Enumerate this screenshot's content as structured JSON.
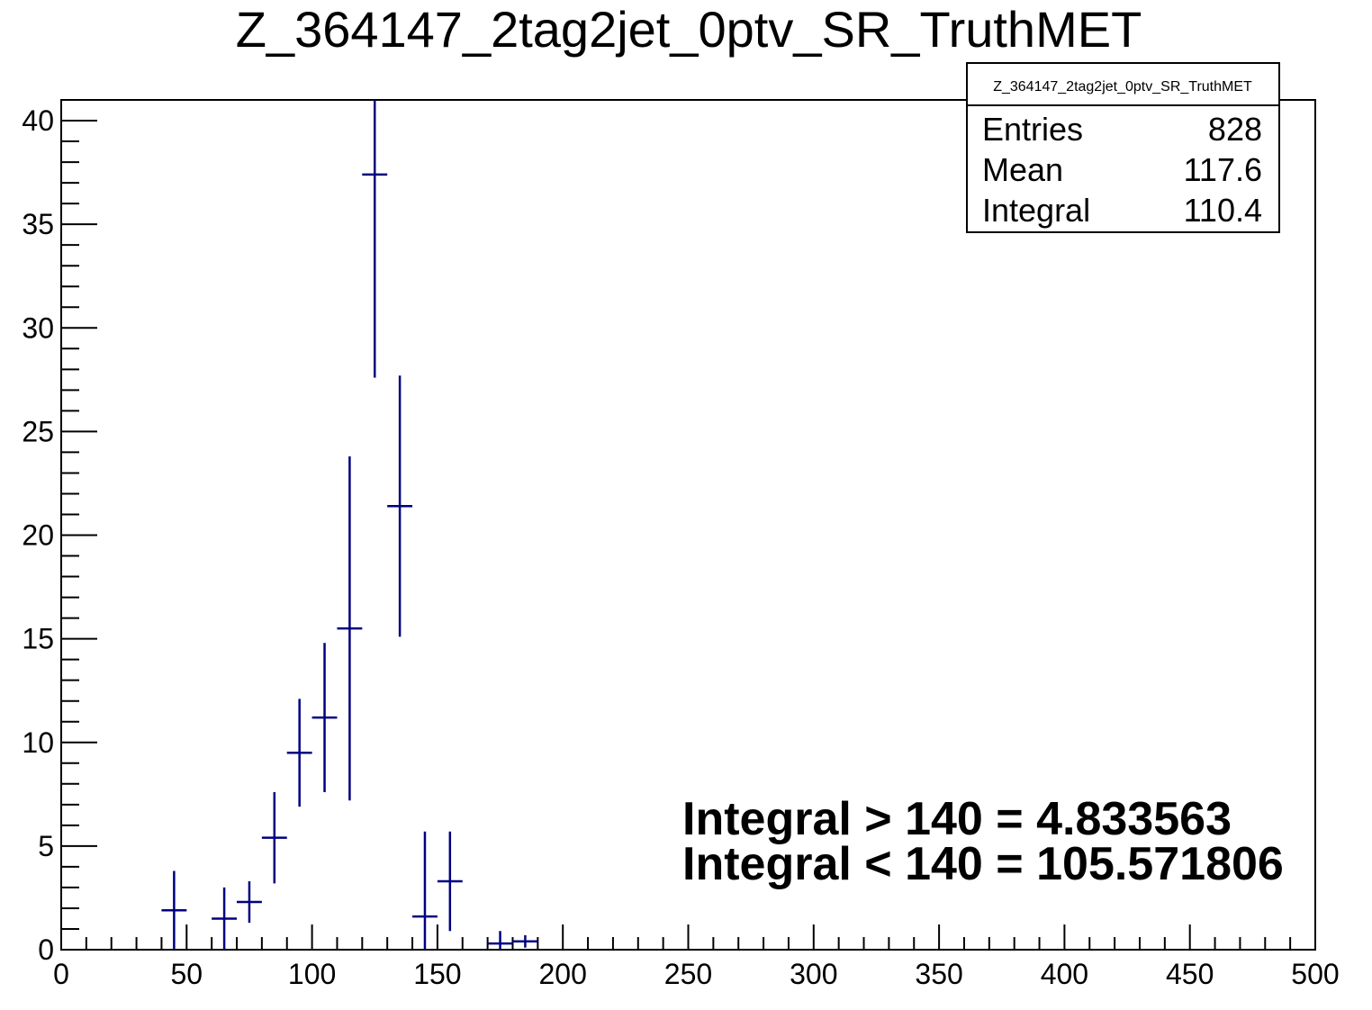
{
  "chart_data": {
    "type": "histogram-errorbars",
    "title": "Z_364147_2tag2jet_0ptv_SR_TruthMET",
    "xlim": [
      0,
      500
    ],
    "ylim": [
      0,
      41
    ],
    "x_ticks": [
      0,
      50,
      100,
      150,
      200,
      250,
      300,
      350,
      400,
      450,
      500
    ],
    "x_tick_labels": [
      "0",
      "50",
      "100",
      "150",
      "200",
      "250",
      "300",
      "350",
      "400",
      "450",
      "500"
    ],
    "y_ticks": [
      0,
      5,
      10,
      15,
      20,
      25,
      30,
      35,
      40
    ],
    "y_tick_labels": [
      "0",
      "5",
      "10",
      "15",
      "20",
      "25",
      "30",
      "35",
      "40"
    ],
    "bin_width": 10,
    "marker_color": "#000080",
    "points": [
      {
        "x": 45,
        "y": 1.9,
        "err": 1.9
      },
      {
        "x": 65,
        "y": 1.5,
        "err": 1.5
      },
      {
        "x": 75,
        "y": 2.3,
        "err": 1.0
      },
      {
        "x": 85,
        "y": 5.4,
        "err": 2.2
      },
      {
        "x": 95,
        "y": 9.5,
        "err": 2.6
      },
      {
        "x": 105,
        "y": 11.2,
        "err": 3.6
      },
      {
        "x": 115,
        "y": 15.5,
        "err": 8.3
      },
      {
        "x": 125,
        "y": 37.4,
        "err": 9.8
      },
      {
        "x": 135,
        "y": 21.4,
        "err": 6.3
      },
      {
        "x": 145,
        "y": 1.6,
        "err": 4.1
      },
      {
        "x": 155,
        "y": 3.3,
        "err": 2.4
      },
      {
        "x": 175,
        "y": 0.3,
        "err": 0.6
      },
      {
        "x": 185,
        "y": 0.4,
        "err": 0.3
      }
    ],
    "stats_box": {
      "title": "Z_364147_2tag2jet_0ptv_SR_TruthMET",
      "rows": [
        {
          "label": "Entries",
          "value": "828"
        },
        {
          "label": "Mean",
          "value": "117.6"
        },
        {
          "label": "Integral",
          "value": "110.4"
        }
      ]
    },
    "annotations": [
      "Integral > 140 = 4.833563",
      "Integral < 140 = 105.571806"
    ]
  }
}
